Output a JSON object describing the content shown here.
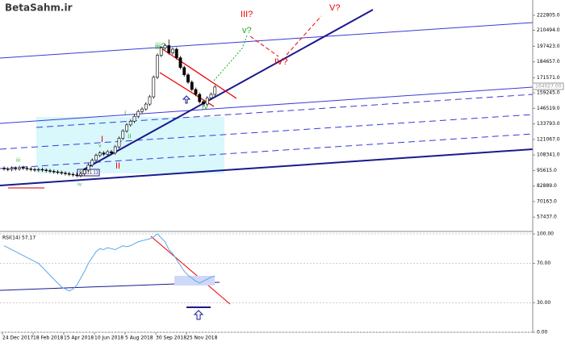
{
  "chart_data": [
    {
      "type": "candlestick",
      "logo": "BetaSahm.ir",
      "x": [
        "24 Dec 2017",
        null,
        null,
        null,
        null,
        null,
        null,
        null,
        "18 Feb 2018",
        null,
        null,
        null,
        null,
        null,
        null,
        null,
        "15 Apr 2018",
        null,
        null,
        null,
        null,
        null,
        null,
        null,
        "10 Jun 2018",
        null,
        null,
        null,
        null,
        null,
        null,
        null,
        "5 Aug 2018",
        null,
        null,
        null,
        null,
        null,
        null,
        null,
        "30 Sep 2018",
        null,
        null,
        null,
        null,
        null,
        null,
        null,
        "25 Nov 2018",
        null,
        null,
        null,
        null,
        null,
        null,
        null
      ],
      "open": [
        97500,
        97000,
        96500,
        97500,
        97000,
        98000,
        97500,
        97000,
        96500,
        96000,
        96500,
        96000,
        95500,
        95000,
        94500,
        94000,
        93500,
        93000,
        92500,
        92000,
        91500,
        93000,
        96000,
        100000,
        104000,
        108000,
        110000,
        109000,
        111000,
        110000,
        115000,
        122000,
        128000,
        133000,
        136000,
        140000,
        144000,
        146000,
        150000,
        156000,
        172000,
        190000,
        196000,
        198000,
        192000,
        195000,
        188000,
        180000,
        174000,
        168000,
        162000,
        158000,
        152000,
        150000,
        155000,
        158000
      ],
      "high": [
        99000,
        98500,
        99000,
        99000,
        99500,
        99500,
        99000,
        98500,
        98000,
        98000,
        98000,
        97500,
        97000,
        96500,
        96000,
        95500,
        95000,
        94500,
        94000,
        93500,
        94500,
        97500,
        101500,
        105500,
        109500,
        111500,
        111500,
        112500,
        112500,
        116500,
        123500,
        129500,
        134500,
        137500,
        141500,
        145500,
        147500,
        151500,
        157500,
        173500,
        191500,
        197500,
        199500,
        203000,
        196500,
        196500,
        189500,
        181500,
        175500,
        169500,
        163500,
        159500,
        153500,
        156500,
        159500,
        165500
      ],
      "low": [
        95500,
        95000,
        95000,
        95500,
        95500,
        96000,
        95500,
        95000,
        94500,
        94500,
        94500,
        94000,
        93500,
        93000,
        92500,
        92000,
        91500,
        91000,
        90500,
        90000,
        90000,
        91500,
        94500,
        98500,
        102500,
        106500,
        107500,
        107500,
        108500,
        108500,
        113500,
        120500,
        126500,
        131500,
        134500,
        138500,
        142500,
        144500,
        148500,
        154500,
        170500,
        188500,
        194500,
        190500,
        190500,
        186500,
        178500,
        172500,
        166500,
        160500,
        156500,
        150500,
        148500,
        148500,
        153500,
        156500
      ],
      "close": [
        97000,
        96500,
        97500,
        97000,
        98000,
        97500,
        97000,
        96500,
        96000,
        96500,
        96000,
        95500,
        95000,
        94500,
        94000,
        93500,
        93000,
        92500,
        92000,
        91500,
        93000,
        96000,
        100000,
        104000,
        108000,
        110000,
        109000,
        111000,
        110000,
        115000,
        122000,
        128000,
        133000,
        136000,
        140000,
        144000,
        146000,
        150000,
        156000,
        172000,
        190000,
        196000,
        198000,
        192000,
        195000,
        188000,
        180000,
        174000,
        168000,
        162000,
        158000,
        152000,
        150000,
        155000,
        158000,
        164000
      ],
      "ylim": [
        47000,
        232000
      ],
      "yticks": [
        {
          "value": 222805,
          "label": "222805.0"
        },
        {
          "value": 210494,
          "label": "210494.0"
        },
        {
          "value": 197423,
          "label": "197423.0"
        },
        {
          "value": 184657,
          "label": "184657.0"
        },
        {
          "value": 171571,
          "label": "171571.0"
        },
        {
          "value": 159245,
          "label": "159245.0"
        },
        {
          "value": 146519,
          "label": "146519.0"
        },
        {
          "value": 133793,
          "label": "133793.0"
        },
        {
          "value": 121067,
          "label": "121067.0"
        },
        {
          "value": 108341,
          "label": "108341.0"
        },
        {
          "value": 95615,
          "label": "95615.0"
        },
        {
          "value": 82889,
          "label": "82889.0"
        },
        {
          "value": 70163,
          "label": "70163.0"
        },
        {
          "value": 57437,
          "label": "57437.0"
        }
      ],
      "annotations": [
        "III?",
        "V?",
        "v?",
        "iii?",
        "IV?",
        "I",
        "II",
        "i",
        "ii",
        "iv",
        "iv",
        "v",
        "iii",
        "164027.00",
        "91311.11"
      ]
    },
    {
      "type": "line",
      "title": "RSI(14) 57.17",
      "color": "#5aa8e8",
      "values": [
        88,
        86,
        84,
        82,
        80,
        78,
        76,
        74,
        72,
        70,
        66,
        62,
        58,
        54,
        50,
        46,
        44,
        42,
        44,
        48,
        55,
        62,
        70,
        76,
        82,
        85,
        84,
        86,
        85,
        84,
        86,
        88,
        87,
        88,
        90,
        92,
        93,
        94,
        95,
        97,
        100,
        96,
        92,
        84,
        80,
        74,
        68,
        62,
        58,
        55,
        52,
        50,
        52,
        54,
        56,
        57.17
      ],
      "ylim": [
        0,
        100
      ],
      "yticks": [
        {
          "value": 100,
          "label": "100.00"
        },
        {
          "value": 70,
          "label": "70.00"
        },
        {
          "value": 30,
          "label": "30.00"
        },
        {
          "value": 0,
          "label": "0.00"
        }
      ]
    }
  ]
}
